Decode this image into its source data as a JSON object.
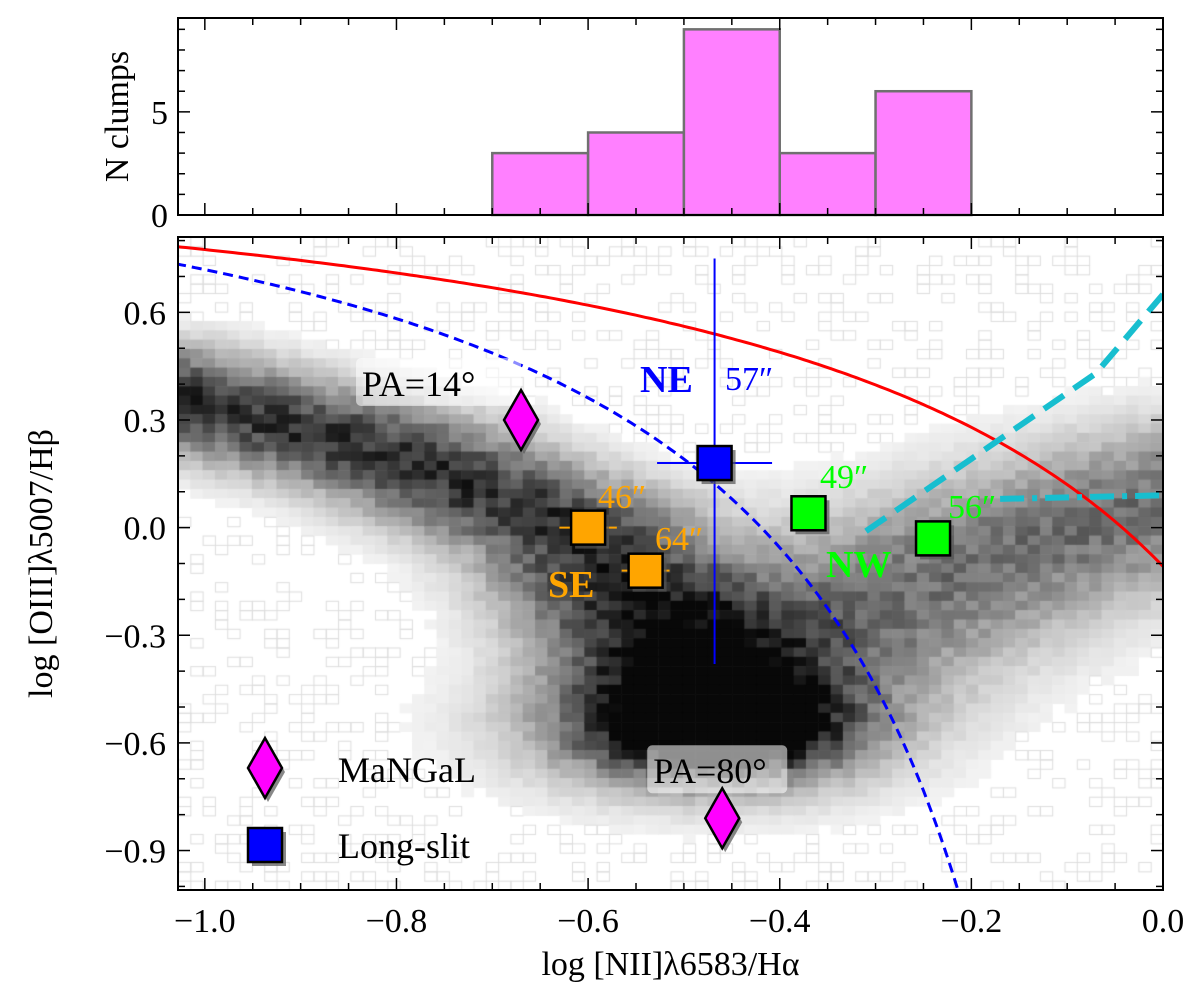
{
  "chart_data": [
    {
      "type": "bar",
      "panel": "top histogram",
      "ylabel": "N clumps",
      "bin_edges": [
        -0.7,
        -0.6,
        -0.5,
        -0.4,
        -0.3,
        -0.2
      ],
      "values": [
        3,
        4,
        9,
        3,
        6
      ],
      "xlim": [
        -1.028,
        0.0
      ],
      "ylim": [
        0,
        9.55
      ],
      "yticks": [
        0,
        5
      ],
      "ytick_labels": [
        "0",
        "5"
      ],
      "bar_color": "#ff80ff",
      "edge_color": "#707070"
    },
    {
      "type": "scatter",
      "panel": "main BPT diagram",
      "xlabel": "log [NII]λ6583/Hα",
      "ylabel": "log [OIII]λ5007/Hβ",
      "xlim": [
        -1.028,
        0.0
      ],
      "ylim": [
        -1.01,
        0.81
      ],
      "xticks": [
        -1.0,
        -0.8,
        -0.6,
        -0.4,
        -0.2,
        0.0
      ],
      "xtick_labels": [
        "−1.0",
        "−0.8",
        "−0.6",
        "−0.4",
        "−0.2",
        "0.0"
      ],
      "yticks": [
        0.6,
        0.3,
        0.0,
        -0.3,
        -0.6,
        -0.9
      ],
      "ytick_labels": [
        "0.6",
        "0.3",
        "0.0",
        "−0.3",
        "−0.6",
        "−0.9"
      ],
      "legend": {
        "placement": "lower-left",
        "entries": [
          {
            "label": "MaNGaL",
            "marker": "diamond",
            "color": "#ff00ff"
          },
          {
            "label": "Long-slit",
            "marker": "square",
            "color": "#0000ff"
          }
        ]
      },
      "mangal_points": [
        {
          "x": -0.67,
          "y": 0.3,
          "label": "PA=14°"
        },
        {
          "x": -0.46,
          "y": -0.81,
          "label": "PA=80°"
        }
      ],
      "longslit_points": [
        {
          "x": -0.468,
          "y": 0.18,
          "xerr": 0.06,
          "yerr_low": 0.56,
          "yerr_high": 0.57,
          "label": "57″",
          "color": "#0000ff"
        },
        {
          "x": -0.6,
          "y": 0.0,
          "xerr": 0.03,
          "label": "46″",
          "color": "#ffa500"
        },
        {
          "x": -0.54,
          "y": -0.12,
          "xerr": 0.025,
          "label": "64″",
          "color": "#ffa500"
        },
        {
          "x": -0.37,
          "y": 0.04,
          "label": "49″",
          "color": "#00ff00"
        },
        {
          "x": -0.24,
          "y": -0.03,
          "label": "56″",
          "color": "#00ff00"
        }
      ],
      "group_labels": [
        {
          "text": "NE",
          "color": "#0000ff"
        },
        {
          "text": "SE",
          "color": "#ffa500"
        },
        {
          "text": "NW",
          "color": "#00ff00"
        }
      ],
      "lines": [
        {
          "name": "Kewley 2001",
          "formula": "0.61/(x-0.47)+1.19",
          "color": "#ff0000",
          "style": "solid"
        },
        {
          "name": "Kauffmann 2003",
          "formula": "0.61/(x-0.05)+1.3",
          "color": "#0000ff",
          "style": "dashed"
        },
        {
          "name": "cyan dashed",
          "x": [
            -0.31,
            -0.07,
            0.0
          ],
          "y": [
            -0.01,
            0.43,
            0.65
          ],
          "color": "#17becf",
          "style": "dashed"
        },
        {
          "name": "cyan dash-dot",
          "x": [
            -0.17,
            0.0
          ],
          "y": [
            0.08,
            0.09
          ],
          "color": "#17becf",
          "style": "dashdot"
        }
      ]
    }
  ]
}
